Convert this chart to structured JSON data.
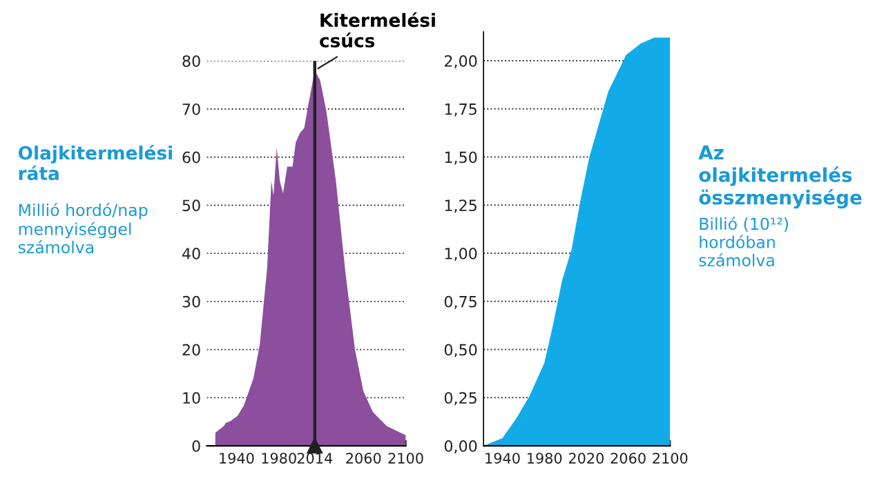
{
  "chart_data": [
    {
      "type": "area",
      "ylabel": "Olajkitermelési\nráta",
      "annotations": [
        "Millió hordó/nap\nmennyiséggel\nszámolva",
        {
          "text": "Kitermelési\ncsúcs",
          "x": 2014,
          "y": 78
        }
      ],
      "x": [
        1920,
        1928,
        1930,
        1934,
        1941,
        1947,
        1956,
        1962,
        1969,
        1973,
        1975,
        1978,
        1981,
        1984,
        1988,
        1993,
        1996,
        2000,
        2004,
        2008,
        2014,
        2019,
        2025,
        2034,
        2043,
        2052,
        2060,
        2069,
        2082,
        2100
      ],
      "series": [
        {
          "color": "#8b4f9e",
          "values": [
            2.7,
            4.1,
            4.8,
            5.1,
            6.2,
            8.4,
            14,
            21,
            37,
            55,
            52,
            62,
            55,
            52.5,
            58,
            58,
            63,
            65,
            66,
            71,
            78,
            76,
            69.5,
            55,
            36,
            20,
            11.3,
            7,
            4.1,
            2.2
          ]
        }
      ],
      "xlim": [
        1912,
        2100
      ],
      "ylim": [
        0,
        80
      ],
      "xticks": [
        1940,
        1980,
        2014,
        2060,
        2100
      ],
      "yticks": [
        0,
        10,
        20,
        30,
        40,
        50,
        60,
        70,
        80
      ],
      "ref_lines": [
        {
          "axis": "x",
          "value": 2014,
          "color": "#222222"
        }
      ],
      "grid": "y",
      "line_style": "dotted"
    },
    {
      "type": "area",
      "ylabel": "Az\nolajkitermelés\nösszmenyisége",
      "annotations": [
        "Billió (10¹²)\nhordóban\nszámolva"
      ],
      "x": [
        1922,
        1940,
        1953,
        1966,
        1980,
        1988,
        1997,
        2006,
        2015,
        2023,
        2032,
        2041,
        2050,
        2058,
        2072,
        2085,
        2100
      ],
      "series": [
        {
          "color": "#12abe8",
          "values": [
            0,
            0.04,
            0.14,
            0.26,
            0.43,
            0.62,
            0.86,
            1.02,
            1.29,
            1.5,
            1.67,
            1.84,
            1.94,
            2.03,
            2.09,
            2.12,
            2.12
          ]
        }
      ],
      "xlim": [
        1922,
        2100
      ],
      "ylim": [
        0,
        2.15
      ],
      "xticks": [
        1940,
        1980,
        2020,
        2060,
        2100
      ],
      "yticks": [
        {
          "value": 0,
          "label": "0,00"
        },
        {
          "value": 0.25,
          "label": "0,25"
        },
        {
          "value": 0.5,
          "label": "0,50"
        },
        {
          "value": 0.75,
          "label": "0,75"
        },
        {
          "value": 1,
          "label": "1,00"
        },
        {
          "value": 1.25,
          "label": "1,25"
        },
        {
          "value": 1.5,
          "label": "1,50"
        },
        {
          "value": 1.75,
          "label": "1,75"
        },
        {
          "value": 2,
          "label": "2,00"
        }
      ],
      "grid": "y",
      "line_style": "dotted"
    }
  ]
}
